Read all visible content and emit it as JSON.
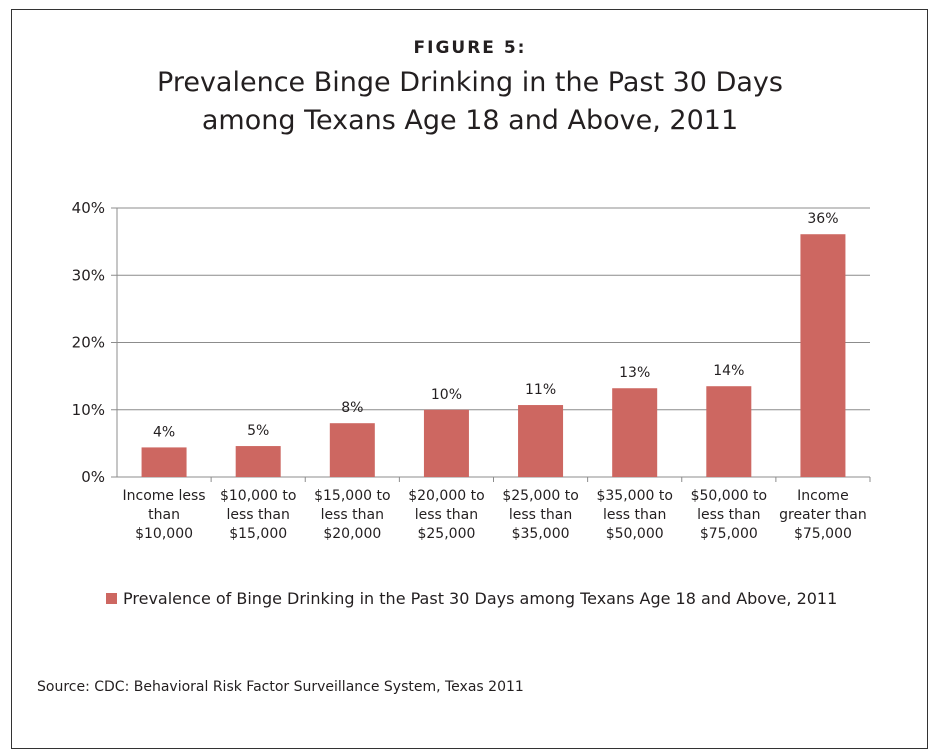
{
  "figure": {
    "label": "FIGURE 5:",
    "title_line1": "Prevalence Binge Drinking in the Past 30 Days",
    "title_line2": "among Texans Age 18 and Above, 2011",
    "source": "Source: CDC: Behavioral Risk Factor Surveillance System, Texas 2011"
  },
  "chart_data": {
    "type": "bar",
    "title": "Prevalence Binge Drinking in the Past 30 Days among Texans Age 18 and Above, 2011",
    "categories": [
      [
        "Income less",
        "than",
        "$10,000"
      ],
      [
        "$10,000 to",
        "less than",
        "$15,000"
      ],
      [
        "$15,000 to",
        "less than",
        "$20,000"
      ],
      [
        "$20,000 to",
        "less than",
        "$25,000"
      ],
      [
        "$25,000 to",
        "less than",
        "$35,000"
      ],
      [
        "$35,000 to",
        "less than",
        "$50,000"
      ],
      [
        "$50,000 to",
        "less than",
        "$75,000"
      ],
      [
        "Income",
        "greater than",
        "$75,000"
      ]
    ],
    "values": [
      4.4,
      4.6,
      8.0,
      10.0,
      10.7,
      13.2,
      13.5,
      36.1
    ],
    "data_labels": [
      "4%",
      "5%",
      "8%",
      "10%",
      "11%",
      "13%",
      "14%",
      "36%"
    ],
    "series": [
      {
        "name": "Prevalence of Binge Drinking in the Past 30 Days among Texans Age 18 and Above, 2011",
        "color": "#cd6761"
      }
    ],
    "ylim": [
      0,
      40
    ],
    "yticks": [
      0,
      10,
      20,
      30,
      40
    ],
    "ytick_labels": [
      "0%",
      "10%",
      "20%",
      "30%",
      "40%"
    ],
    "grid": true,
    "legend_position": "bottom",
    "xlabel": "",
    "ylabel": ""
  }
}
